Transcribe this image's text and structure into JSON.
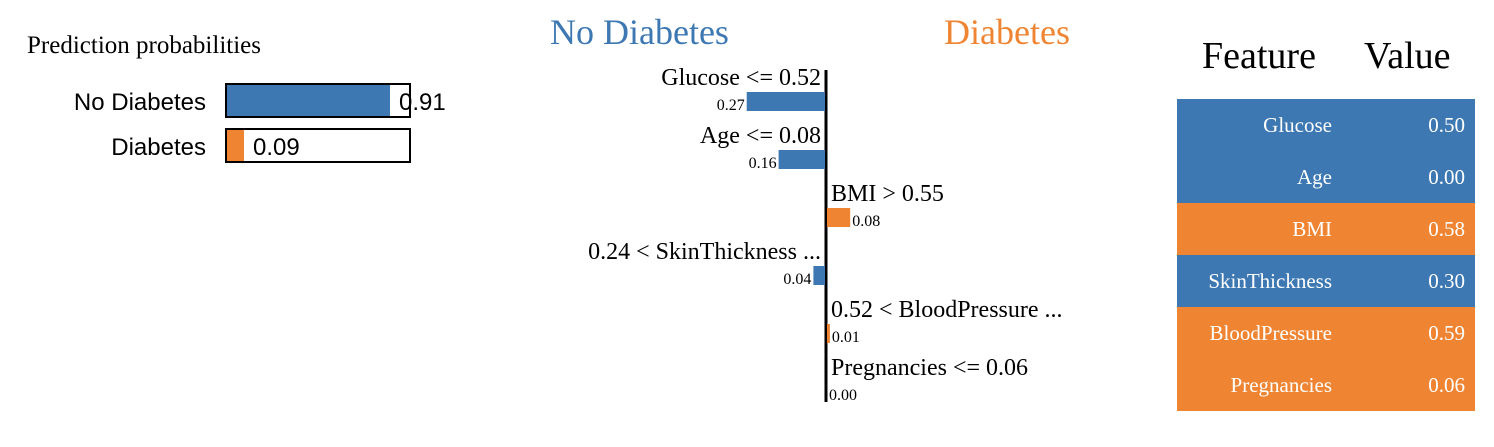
{
  "colors": {
    "no_diabetes": "#3d78b3",
    "diabetes": "#ef8533"
  },
  "proba_panel": {
    "title": "Prediction probabilities",
    "rows": [
      {
        "label": "No Diabetes",
        "value": 0.91,
        "value_text": "0.91",
        "color": "#3d78b3"
      },
      {
        "label": "Diabetes",
        "value": 0.09,
        "value_text": "0.09",
        "color": "#ef8533"
      }
    ]
  },
  "explain_panel": {
    "class_left": "No Diabetes",
    "class_right": "Diabetes",
    "features": [
      {
        "condition": "Glucose <= 0.52",
        "weight": 0.27,
        "weight_text": "0.27",
        "side": "left"
      },
      {
        "condition": "Age <= 0.08",
        "weight": 0.16,
        "weight_text": "0.16",
        "side": "left"
      },
      {
        "condition": "BMI > 0.55",
        "weight": 0.08,
        "weight_text": "0.08",
        "side": "right"
      },
      {
        "condition": "0.24 < SkinThickness ...",
        "weight": 0.04,
        "weight_text": "0.04",
        "side": "left"
      },
      {
        "condition": "0.52 < BloodPressure ...",
        "weight": 0.01,
        "weight_text": "0.01",
        "side": "right"
      },
      {
        "condition": "Pregnancies <= 0.06",
        "weight": 0.0,
        "weight_text": "0.00",
        "side": "right"
      }
    ]
  },
  "feature_table": {
    "header_feature": "Feature",
    "header_value": "Value",
    "rows": [
      {
        "feature": "Glucose",
        "value": "0.50",
        "color": "#3d78b3"
      },
      {
        "feature": "Age",
        "value": "0.00",
        "color": "#3d78b3"
      },
      {
        "feature": "BMI",
        "value": "0.58",
        "color": "#ef8533"
      },
      {
        "feature": "SkinThickness",
        "value": "0.30",
        "color": "#3d78b3"
      },
      {
        "feature": "BloodPressure",
        "value": "0.59",
        "color": "#ef8533"
      },
      {
        "feature": "Pregnancies",
        "value": "0.06",
        "color": "#ef8533"
      }
    ]
  },
  "chart_data": [
    {
      "type": "bar",
      "title": "Prediction probabilities",
      "categories": [
        "No Diabetes",
        "Diabetes"
      ],
      "values": [
        0.91,
        0.09
      ],
      "xlim": [
        0,
        1
      ]
    },
    {
      "type": "bar",
      "orientation": "horizontal",
      "categories": [
        "Glucose <= 0.52",
        "Age <= 0.08",
        "BMI > 0.55",
        "0.24 < SkinThickness ...",
        "0.52 < BloodPressure ...",
        "Pregnancies <= 0.06"
      ],
      "series": [
        {
          "name": "No Diabetes",
          "values": [
            0.27,
            0.16,
            0,
            0.04,
            0,
            0
          ]
        },
        {
          "name": "Diabetes",
          "values": [
            0,
            0,
            0.08,
            0,
            0.01,
            0.0
          ]
        }
      ]
    }
  ]
}
